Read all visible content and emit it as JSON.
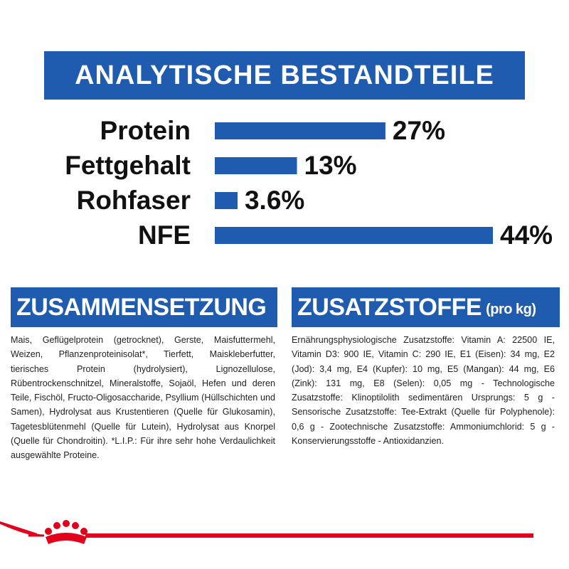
{
  "chart_data": {
    "type": "bar",
    "title": "ANALYTISCHE BESTANDTEILE",
    "categories": [
      "Protein",
      "Fettgehalt",
      "Rohfaser",
      "NFE"
    ],
    "values": [
      27,
      13,
      3.6,
      44
    ],
    "value_labels": [
      "27%",
      "13%",
      "3.6%",
      "44%"
    ],
    "color": "#1f5bae"
  },
  "composition": {
    "title": "ZUSAMMENSETZUNG",
    "text": "Mais, Geflügelprotein (getrocknet), Gerste, Maisfuttermehl, Weizen, Pflanzenproteinisolat*, Tierfett, Maiskleberfutter, tierisches Protein (hydrolysiert), Lignozellulose, Rübentrockenschnitzel, Mineralstoffe, Sojaöl, Hefen und deren Teile, Fischöl, Fructo-Oligosaccharide, Psyllium (Hüllschichten und Samen), Hydrolysat aus Krustentieren (Quelle für Glukosamin), Tagetesblütenmehl (Quelle für Lutein), Hydrolysat aus Knorpel (Quelle für Chondroitin). *L.I.P.: Für ihre sehr hohe Verdaulichkeit ausgewählte Proteine."
  },
  "additives": {
    "title": "ZUSATZSTOFFE",
    "subtitle": "(pro kg)",
    "text": "Ernährungsphysiologische Zusatzstoffe: Vitamin A: 22500 IE, Vitamin D3: 900 IE, Vitamin C: 290 IE, E1 (Eisen): 34 mg, E2 (Jod): 3,4 mg, E4 (Kupfer): 10 mg, E5 (Mangan): 44 mg, E6 (Zink): 131 mg, E8 (Selen): 0,05 mg - Technologische Zusatzstoffe: Klinoptilolith sedimentären Ursprungs: 5 g - Sensorische Zusatzstoffe: Tee-Extrakt (Quelle für Polyphenole): 0,6 g - Zootechnische Zusatzstoffe: Ammoniumchlorid: 5 g - Konservierungsstoffe - Antioxidanzien."
  }
}
